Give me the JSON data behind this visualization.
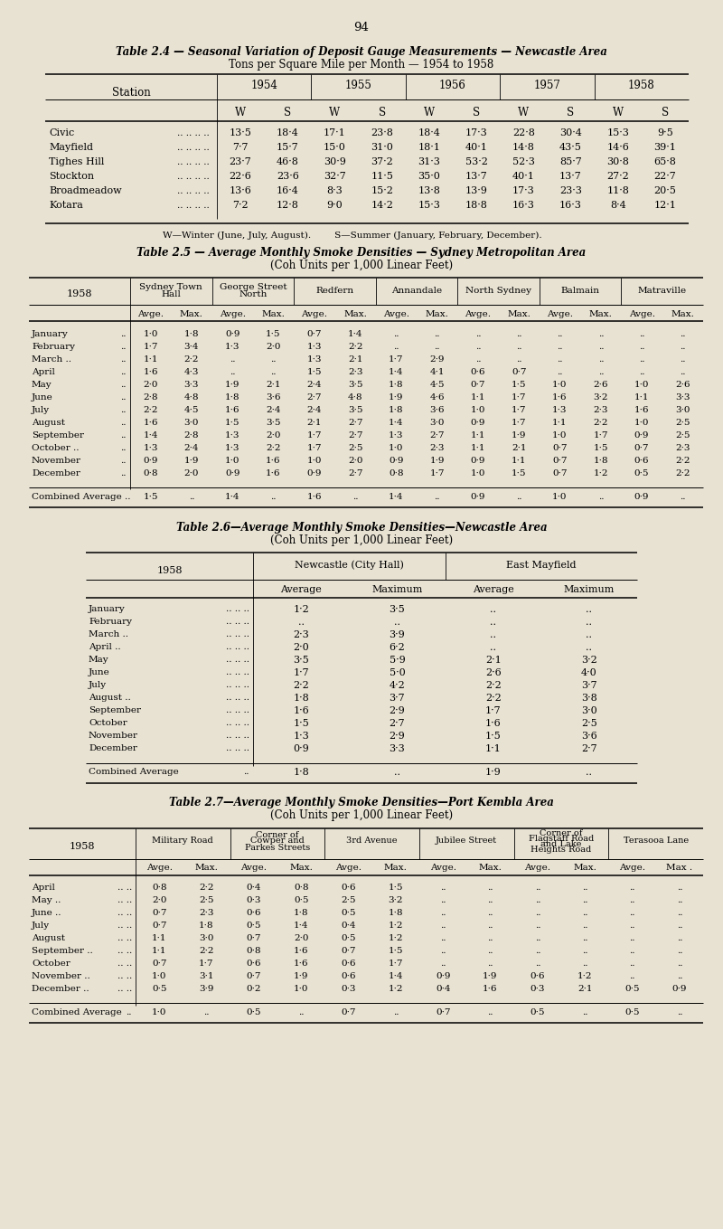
{
  "bg_color": "#e8e2d3",
  "page_number": "94",
  "table24": {
    "title_line1": "Table 2.4 — Seasonal Variation of Deposit Gauge Measurements — Newcastle Area",
    "title_line2": "Tons per Square Mile per Month — 1954 to 1958",
    "years": [
      "1954",
      "1955",
      "1956",
      "1957",
      "1958"
    ],
    "stations": [
      "Civic",
      "Mayfield",
      "Tighes Hill",
      "Stockton",
      "Broadmeadow",
      "Kotara"
    ],
    "sub_headers": [
      "W",
      "S",
      "W",
      "S",
      "W",
      "S",
      "W",
      "S",
      "W",
      "S"
    ],
    "data": [
      [
        "13·5",
        "18·4",
        "17·1",
        "23·8",
        "18·4",
        "17·3",
        "22·8",
        "30·4",
        "15·3",
        "9·5"
      ],
      [
        "7·7",
        "15·7",
        "15·0",
        "31·0",
        "18·1",
        "40·1",
        "14·8",
        "43·5",
        "14·6",
        "39·1"
      ],
      [
        "23·7",
        "46·8",
        "30·9",
        "37·2",
        "31·3",
        "53·2",
        "52·3",
        "85·7",
        "30·8",
        "65·8"
      ],
      [
        "22·6",
        "23·6",
        "32·7",
        "11·5",
        "35·0",
        "13·7",
        "40·1",
        "13·7",
        "27·2",
        "22·7"
      ],
      [
        "13·6",
        "16·4",
        "8·3",
        "15·2",
        "13·8",
        "13·9",
        "17·3",
        "23·3",
        "11·8",
        "20·5"
      ],
      [
        "7·2",
        "12·8",
        "9·0",
        "14·2",
        "15·3",
        "18·8",
        "16·3",
        "16·3",
        "8·4",
        "12·1"
      ]
    ],
    "footnote": "W—Winter (June, July, August).        S—Summer (January, February, December)."
  },
  "table25": {
    "title_line1": "Table 2.5 — Average Monthly Smoke Densities — Sydney Metropolitan Area",
    "title_line2": "(Coh Units per 1,000 Linear Feet)",
    "col_groups": [
      "Sydney Town\nHall",
      "George Street\nNorth",
      "Redfern",
      "Annandale",
      "North Sydney",
      "Balmain",
      "Matraville"
    ],
    "sub_headers": [
      "Avge.",
      "Max.",
      "Avge.",
      "Max.",
      "Avge.",
      "Max.",
      "Avge.",
      "Max.",
      "Avge.",
      "Max.",
      "Avge.",
      "Max.",
      "Avge.",
      "Max."
    ],
    "months": [
      "January",
      "February",
      "March ..",
      "April",
      "May",
      "June",
      "July",
      "August",
      "September",
      "October ..",
      "November",
      "December"
    ],
    "month_dots": [
      " .. ..",
      " .. ..",
      " ..",
      " .. ..",
      " .. ..",
      " .. ..",
      " .. ..",
      " .. ..",
      " .. ..",
      " ..",
      " .. ..",
      " .. .."
    ],
    "data": [
      [
        "1·0",
        "1·8",
        "0·9",
        "1·5",
        "0·7",
        "1·4",
        "..",
        "..",
        "..",
        "..",
        "..",
        "..",
        "..",
        ".."
      ],
      [
        "1·7",
        "3·4",
        "1·3",
        "2·0",
        "1·3",
        "2·2",
        "..",
        "..",
        "..",
        "..",
        "..",
        "..",
        "..",
        ".."
      ],
      [
        "1·1",
        "2·2",
        "..",
        "..",
        "1·3",
        "2·1",
        "1·7",
        "2·9",
        "..",
        "..",
        "..",
        "..",
        "..",
        ".."
      ],
      [
        "1·6",
        "4·3",
        "..",
        "..",
        "1·5",
        "2·3",
        "1·4",
        "4·1",
        "0·6",
        "0·7",
        "..",
        "..",
        "..",
        ".."
      ],
      [
        "2·0",
        "3·3",
        "1·9",
        "2·1",
        "2·4",
        "3·5",
        "1·8",
        "4·5",
        "0·7",
        "1·5",
        "1·0",
        "2·6",
        "1·0",
        "2·6"
      ],
      [
        "2·8",
        "4·8",
        "1·8",
        "3·6",
        "2·7",
        "4·8",
        "1·9",
        "4·6",
        "1·1",
        "1·7",
        "1·6",
        "3·2",
        "1·1",
        "3·3"
      ],
      [
        "2·2",
        "4·5",
        "1·6",
        "2·4",
        "2·4",
        "3·5",
        "1·8",
        "3·6",
        "1·0",
        "1·7",
        "1·3",
        "2·3",
        "1·6",
        "3·0"
      ],
      [
        "1·6",
        "3·0",
        "1·5",
        "3·5",
        "2·1",
        "2·7",
        "1·4",
        "3·0",
        "0·9",
        "1·7",
        "1·1",
        "2·2",
        "1·0",
        "2·5"
      ],
      [
        "1·4",
        "2·8",
        "1·3",
        "2·0",
        "1·7",
        "2·7",
        "1·3",
        "2·7",
        "1·1",
        "1·9",
        "1·0",
        "1·7",
        "0·9",
        "2·5"
      ],
      [
        "1·3",
        "2·4",
        "1·3",
        "2·2",
        "1·7",
        "2·5",
        "1·0",
        "2·3",
        "1·1",
        "2·1",
        "0·7",
        "1·5",
        "0·7",
        "2·3"
      ],
      [
        "0·9",
        "1·9",
        "1·0",
        "1·6",
        "1·0",
        "2·0",
        "0·9",
        "1·9",
        "0·9",
        "1·1",
        "0·7",
        "1·8",
        "0·6",
        "2·2"
      ],
      [
        "0·8",
        "2·0",
        "0·9",
        "1·6",
        "0·9",
        "2·7",
        "0·8",
        "1·7",
        "1·0",
        "1·5",
        "0·7",
        "1·2",
        "0·5",
        "2·2"
      ]
    ],
    "combined": [
      "1·5",
      "..",
      "1·4",
      "..",
      "1·6",
      "..",
      "1·4",
      "..",
      "0·9",
      "..",
      "1·0",
      "..",
      "0·9",
      ".."
    ]
  },
  "table26": {
    "title_line1": "Table 2.6—Average Monthly Smoke Densities—Newcastle Area",
    "title_line2": "(Coh Units per 1,000 Linear Feet)",
    "col_groups": [
      "Newcastle (City Hall)",
      "East Mayfield"
    ],
    "sub_headers": [
      "Average",
      "Maximum",
      "Average",
      "Maximum"
    ],
    "months": [
      "January",
      "February",
      "March ..",
      "April ..",
      "May",
      "June",
      "July",
      "August ..",
      "September",
      "October",
      "November",
      "December"
    ],
    "data": [
      [
        "1·2",
        "3·5",
        "..",
        ".."
      ],
      [
        "..",
        "..",
        "..",
        ".."
      ],
      [
        "2·3",
        "3·9",
        "..",
        ".."
      ],
      [
        "2·0",
        "6·2",
        "..",
        ".."
      ],
      [
        "3·5",
        "5·9",
        "2·1",
        "3·2"
      ],
      [
        "1·7",
        "5·0",
        "2·6",
        "4·0"
      ],
      [
        "2·2",
        "4·2",
        "2·2",
        "3·7"
      ],
      [
        "1·8",
        "3·7",
        "2·2",
        "3·8"
      ],
      [
        "1·6",
        "2·9",
        "1·7",
        "3·0"
      ],
      [
        "1·5",
        "2·7",
        "1·6",
        "2·5"
      ],
      [
        "1·3",
        "2·9",
        "1·5",
        "3·6"
      ],
      [
        "0·9",
        "3·3",
        "1·1",
        "2·7"
      ]
    ],
    "combined": [
      "1·8",
      "..",
      "1·9",
      ".."
    ]
  },
  "table27": {
    "title_line1": "Table 2.7—Average Monthly Smoke Densities—Port Kembla Area",
    "title_line2": "(Coh Units per 1,000 Linear Feet)",
    "col_groups": [
      "Military Road",
      "Corner of\nCowper and\nParkes Streets",
      "3rd Avenue",
      "Jubilee Street",
      "Corner of\nFlagstaff Road\nand Lake\nHeights Road",
      "Terasooa Lane"
    ],
    "sub_headers": [
      "Avge.",
      "Max.",
      "Avge.",
      "Max.",
      "Avge.",
      "Max.",
      "Avge.",
      "Max.",
      "Avge.",
      "Max.",
      "Avge.",
      "Max ."
    ],
    "months": [
      "April",
      "May ..",
      "June ..",
      "July",
      "August",
      "September ..",
      "October",
      "November ..",
      "December .."
    ],
    "data": [
      [
        "0·8",
        "2·2",
        "0·4",
        "0·8",
        "0·6",
        "1·5",
        "..",
        "..",
        "..",
        "..",
        "..",
        ".."
      ],
      [
        "2·0",
        "2·5",
        "0·3",
        "0·5",
        "2·5",
        "3·2",
        "..",
        "..",
        "..",
        "..",
        "..",
        ".."
      ],
      [
        "0·7",
        "2·3",
        "0·6",
        "1·8",
        "0·5",
        "1·8",
        "..",
        "..",
        "..",
        "..",
        "..",
        ".."
      ],
      [
        "0·7",
        "1·8",
        "0·5",
        "1·4",
        "0·4",
        "1·2",
        "..",
        "..",
        "..",
        "..",
        "..",
        ".."
      ],
      [
        "1·1",
        "3·0",
        "0·7",
        "2·0",
        "0·5",
        "1·2",
        "..",
        "..",
        "..",
        "..",
        "..",
        ".."
      ],
      [
        "1·1",
        "2·2",
        "0·8",
        "1·6",
        "0·7",
        "1·5",
        "..",
        "..",
        "..",
        "..",
        "..",
        ".."
      ],
      [
        "0·7",
        "1·7",
        "0·6",
        "1·6",
        "0·6",
        "1·7",
        "..",
        "..",
        "..",
        "..",
        "..",
        ".."
      ],
      [
        "1·0",
        "3·1",
        "0·7",
        "1·9",
        "0·6",
        "1·4",
        "0·9",
        "1·9",
        "0·6",
        "1·2",
        "..",
        ".."
      ],
      [
        "0·5",
        "3·9",
        "0·2",
        "1·0",
        "0·3",
        "1·2",
        "0·4",
        "1·6",
        "0·3",
        "2·1",
        "0·5",
        "0·9"
      ]
    ],
    "combined": [
      "1·0",
      "..",
      "0·5",
      "..",
      "0·7",
      "..",
      "0·7",
      "..",
      "0·5",
      "..",
      "0·5",
      ".."
    ]
  }
}
